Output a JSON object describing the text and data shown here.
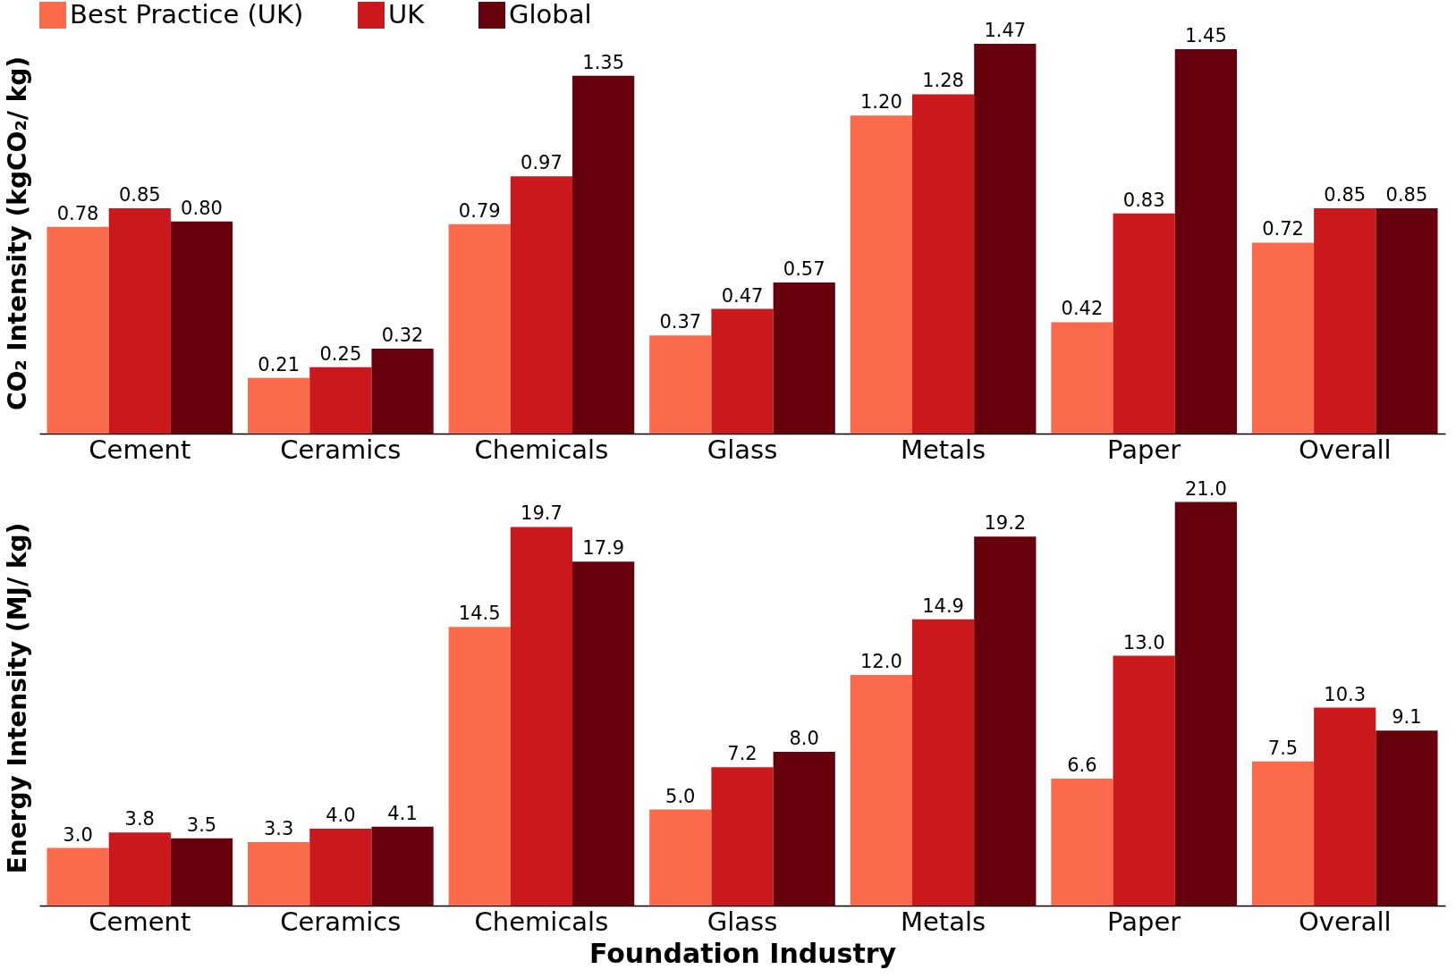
{
  "chart_data": [
    {
      "type": "bar",
      "ylabel": "CO₂ Intensity (kgCO₂/ kg)",
      "categories": [
        "Cement",
        "Ceramics",
        "Chemicals",
        "Glass",
        "Metals",
        "Paper",
        "Overall"
      ],
      "series": [
        {
          "name": "Best Practice (UK)",
          "color": "#fb6a4a",
          "values": [
            0.78,
            0.21,
            0.79,
            0.37,
            1.2,
            0.42,
            0.72
          ],
          "value_labels": [
            "0.78",
            "0.21",
            "0.79",
            "0.37",
            "1.20",
            "0.42",
            "0.72"
          ]
        },
        {
          "name": "UK",
          "color": "#cb181d",
          "values": [
            0.85,
            0.25,
            0.97,
            0.47,
            1.28,
            0.83,
            0.85
          ],
          "value_labels": [
            "0.85",
            "0.25",
            "0.97",
            "0.47",
            "1.28",
            "0.83",
            "0.85"
          ]
        },
        {
          "name": "Global",
          "color": "#67000d",
          "values": [
            0.8,
            0.32,
            1.35,
            0.57,
            1.47,
            1.45,
            0.85
          ],
          "value_labels": [
            "0.80",
            "0.32",
            "1.35",
            "0.57",
            "1.47",
            "1.45",
            "0.85"
          ]
        }
      ],
      "legend": "top",
      "tick_labels": "x"
    },
    {
      "type": "bar",
      "ylabel": "Energy Intensity (MJ/ kg)",
      "xlabel": "Foundation Industry",
      "categories": [
        "Cement",
        "Ceramics",
        "Chemicals",
        "Glass",
        "Metals",
        "Paper",
        "Overall"
      ],
      "series": [
        {
          "color": "#fb6a4a",
          "values": [
            3.0,
            3.3,
            14.5,
            5.0,
            12.0,
            6.6,
            7.5
          ],
          "value_labels": [
            "3.0",
            "3.3",
            "14.5",
            "5.0",
            "12.0",
            "6.6",
            "7.5"
          ]
        },
        {
          "color": "#cb181d",
          "values": [
            3.8,
            4.0,
            19.7,
            7.2,
            14.9,
            13.0,
            10.3
          ],
          "value_labels": [
            "3.8",
            "4.0",
            "19.7",
            "7.2",
            "14.9",
            "13.0",
            "10.3"
          ]
        },
        {
          "color": "#67000d",
          "values": [
            3.5,
            4.1,
            17.9,
            8.0,
            19.2,
            21.0,
            9.1
          ],
          "value_labels": [
            "3.5",
            "4.1",
            "17.9",
            "8.0",
            "19.2",
            "21.0",
            "9.1"
          ]
        }
      ],
      "tick_labels": "x"
    }
  ]
}
